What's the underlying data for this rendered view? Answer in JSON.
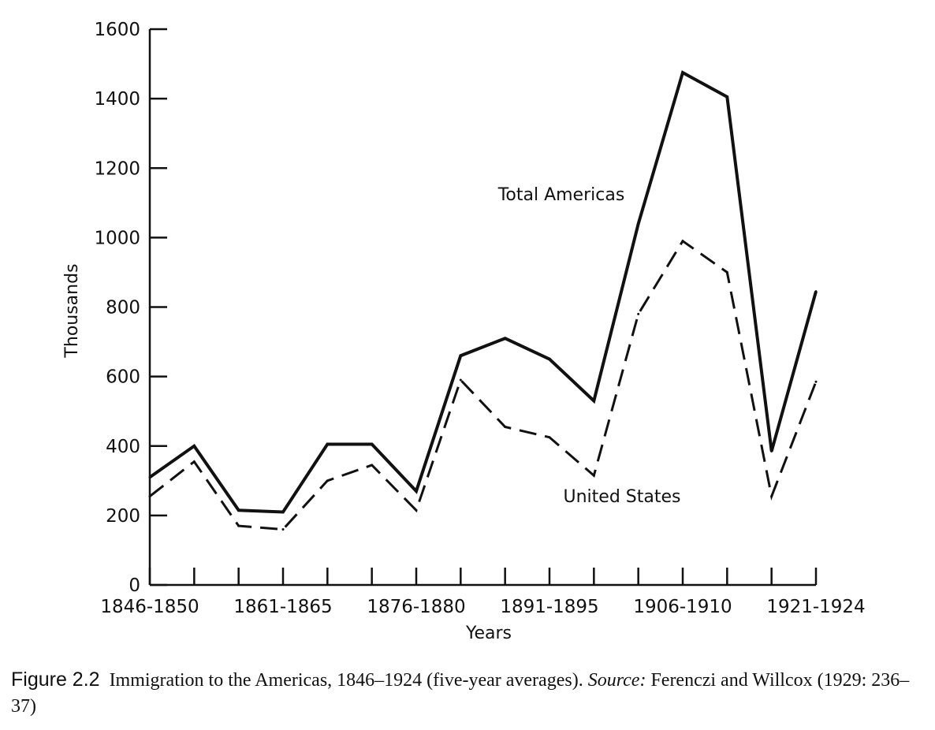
{
  "chart_data": {
    "type": "line",
    "ylabel": "Thousands",
    "xlabel": "Years",
    "ylim": [
      0,
      1600
    ],
    "yticks": [
      0,
      200,
      400,
      600,
      800,
      1000,
      1200,
      1400,
      1600
    ],
    "x_count": 16,
    "x_tick_labels": [
      {
        "index": 0,
        "label": "1846-1850"
      },
      {
        "index": 3,
        "label": "1861-1865"
      },
      {
        "index": 6,
        "label": "1876-1880"
      },
      {
        "index": 9,
        "label": "1891-1895"
      },
      {
        "index": 12,
        "label": "1906-1910"
      },
      {
        "index": 15,
        "label": "1921-1924"
      }
    ],
    "grid": false,
    "series": [
      {
        "name": "Total Americas",
        "style": "solid",
        "values": [
          310,
          400,
          215,
          210,
          405,
          405,
          270,
          660,
          710,
          650,
          530,
          1040,
          1475,
          1405,
          385,
          845
        ]
      },
      {
        "name": "United States",
        "style": "dashed",
        "values": [
          255,
          355,
          170,
          160,
          300,
          345,
          215,
          590,
          455,
          425,
          315,
          780,
          990,
          900,
          255,
          585
        ]
      }
    ]
  },
  "caption": {
    "figure_label": "Figure 2.2",
    "text_main": "Immigration to the Americas, 1846–1924 (five-year averages).",
    "source_label": "Source:",
    "source_text": "Ferenczi and Willcox (1929: 236–37)"
  }
}
